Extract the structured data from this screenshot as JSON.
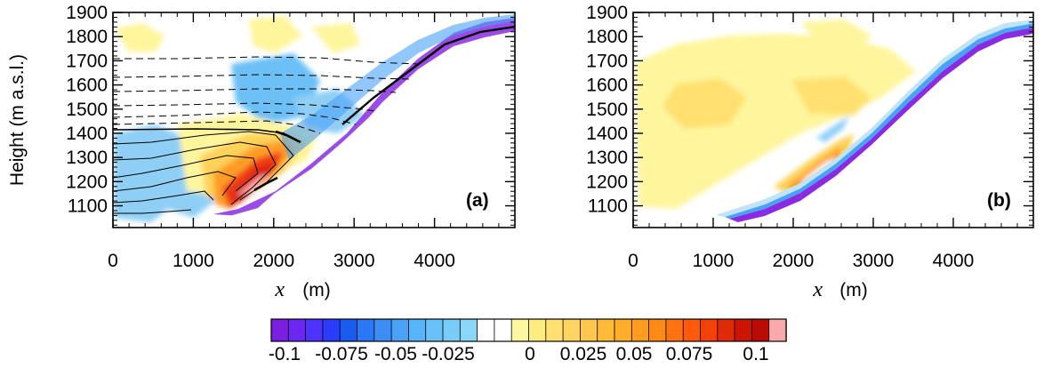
{
  "chart_data": [
    {
      "type": "heatmap",
      "panel": "(a)",
      "ylabel": "Height (m a.s.l.)",
      "xlabel_var": "x",
      "xlabel_unit": "(m)",
      "xlim": [
        0,
        5000
      ],
      "ylim": [
        1010,
        1900
      ],
      "x_ticks": [
        0,
        1000,
        2000,
        3000,
        4000
      ],
      "y_ticks": [
        1100,
        1200,
        1300,
        1400,
        1500,
        1600,
        1700,
        1800,
        1900
      ],
      "terrain": [
        [
          0,
          1015
        ],
        [
          500,
          1016
        ],
        [
          1000,
          1025
        ],
        [
          1500,
          1080
        ],
        [
          2000,
          1175
        ],
        [
          2500,
          1300
        ],
        [
          3000,
          1440
        ],
        [
          3500,
          1580
        ],
        [
          4000,
          1705
        ],
        [
          4500,
          1790
        ],
        [
          5000,
          1830
        ]
      ],
      "warm_core": {
        "x": [
          1200,
          2400
        ],
        "y": [
          1100,
          1350
        ]
      },
      "contours": "solid and dashed isentropes"
    },
    {
      "type": "heatmap",
      "panel": "(b)",
      "ylabel": "",
      "xlabel_var": "x",
      "xlabel_unit": "(m)",
      "xlim": [
        0,
        5000
      ],
      "ylim": [
        1010,
        1900
      ],
      "x_ticks": [
        0,
        1000,
        2000,
        3000,
        4000
      ],
      "y_ticks": [
        1100,
        1200,
        1300,
        1400,
        1500,
        1600,
        1700,
        1800,
        1900
      ],
      "terrain": [
        [
          0,
          1015
        ],
        [
          500,
          1016
        ],
        [
          1000,
          1025
        ],
        [
          1500,
          1080
        ],
        [
          2000,
          1175
        ],
        [
          2500,
          1300
        ],
        [
          3000,
          1440
        ],
        [
          3500,
          1580
        ],
        [
          4000,
          1705
        ],
        [
          4500,
          1790
        ],
        [
          5000,
          1830
        ]
      ]
    }
  ],
  "colorbar": {
    "labels": [
      "-0.1",
      "-0.075",
      "-0.05",
      "-0.025",
      "0",
      "0.025",
      "0.05",
      "0.075",
      "0.1"
    ],
    "colors": [
      "#7a1fe0",
      "#6a28f2",
      "#4d33ff",
      "#2a3cff",
      "#1a5cf0",
      "#2a78f5",
      "#3c8ef6",
      "#4aa2f8",
      "#58b4f8",
      "#68c2f8",
      "#78ccf8",
      "#8ad6f8",
      "#ffffff",
      "#ffffff",
      "#fff6a0",
      "#ffec80",
      "#ffe070",
      "#ffd460",
      "#ffc84c",
      "#ffbb38",
      "#ffae2a",
      "#ff9c20",
      "#ff8a18",
      "#ff7212",
      "#ff5a0c",
      "#f24208",
      "#e02a06",
      "#cc1404",
      "#b80c04",
      "#f9a9a9"
    ]
  }
}
